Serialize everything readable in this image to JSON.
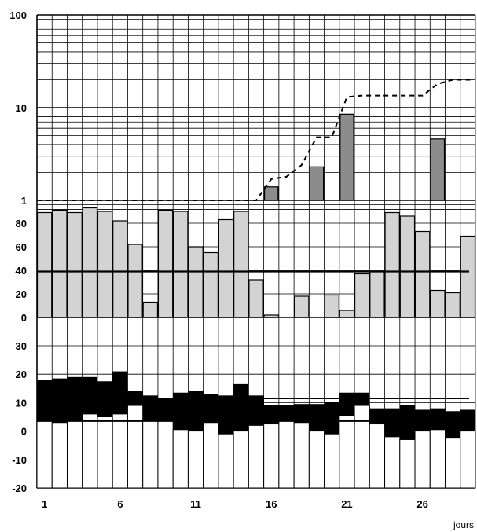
{
  "chart_data": [
    {
      "type": "bar",
      "scale": "log",
      "ylim": [
        0.2,
        100
      ],
      "ytick_labels": [
        "1",
        "10",
        "100"
      ],
      "days": [
        16,
        19,
        21,
        27
      ],
      "values": [
        1.4,
        2.3,
        8.5,
        4.6
      ],
      "cumulative_line": {
        "style": "dashed",
        "x": [
          1,
          15,
          16,
          17,
          18,
          19,
          20,
          21,
          22,
          23,
          24,
          25,
          26,
          27,
          28,
          29
        ],
        "values": [
          1,
          1,
          1.7,
          1.8,
          2.4,
          4.8,
          4.8,
          13,
          13.5,
          13.5,
          13.5,
          13.5,
          13.5,
          18,
          20,
          20
        ]
      },
      "colors": {
        "bar": "#8c8c8c"
      }
    },
    {
      "type": "bar",
      "ylim": [
        0,
        100
      ],
      "ytick_labels": [
        "0",
        "20",
        "40",
        "60",
        "80"
      ],
      "days": [
        1,
        2,
        3,
        4,
        5,
        6,
        7,
        8,
        9,
        10,
        11,
        12,
        13,
        14,
        15,
        16,
        17,
        18,
        19,
        20,
        21,
        22,
        23,
        24,
        25,
        26,
        27,
        28,
        29
      ],
      "values": [
        89,
        91,
        89,
        93,
        90,
        82,
        62,
        13,
        91,
        90,
        60,
        55,
        83,
        90,
        32,
        2,
        0,
        18,
        0,
        19,
        6,
        37,
        39,
        89,
        86,
        73,
        23,
        21,
        69
      ],
      "reference_line": 39,
      "colors": {
        "bar": "#d3d3d3"
      }
    },
    {
      "type": "range-bar",
      "ylim": [
        -20,
        30
      ],
      "ytick_labels": [
        "-20",
        "-10",
        "0",
        "10",
        "20",
        "30"
      ],
      "days": [
        1,
        2,
        3,
        4,
        5,
        6,
        7,
        8,
        9,
        10,
        11,
        12,
        13,
        14,
        15,
        16,
        17,
        18,
        19,
        20,
        21,
        22,
        23,
        24,
        25,
        26,
        27,
        28,
        29
      ],
      "max": [
        18,
        18.5,
        19,
        19,
        17.5,
        21,
        14,
        12.5,
        11.5,
        13.5,
        14,
        13,
        12.5,
        16.5,
        12.5,
        9,
        9,
        9.5,
        9.5,
        10,
        13.5,
        13.5,
        8,
        8,
        9,
        7.5,
        8,
        7,
        7.5
      ],
      "min": [
        3.5,
        3,
        3.5,
        6,
        5,
        6,
        9,
        3.5,
        3.5,
        0.5,
        0,
        3,
        -1,
        0,
        2,
        2.5,
        3.5,
        3,
        0,
        -1,
        5.5,
        9,
        2.5,
        -2,
        -3,
        0,
        0.5,
        -2.5,
        0
      ],
      "reference_lines": [
        11.5,
        3.5
      ],
      "colors": {
        "range": "#000000",
        "below": "#ffffff"
      }
    }
  ],
  "x_axis": {
    "tick_labels": [
      "1",
      "6",
      "11",
      "16",
      "21",
      "26"
    ],
    "label": "jours"
  }
}
